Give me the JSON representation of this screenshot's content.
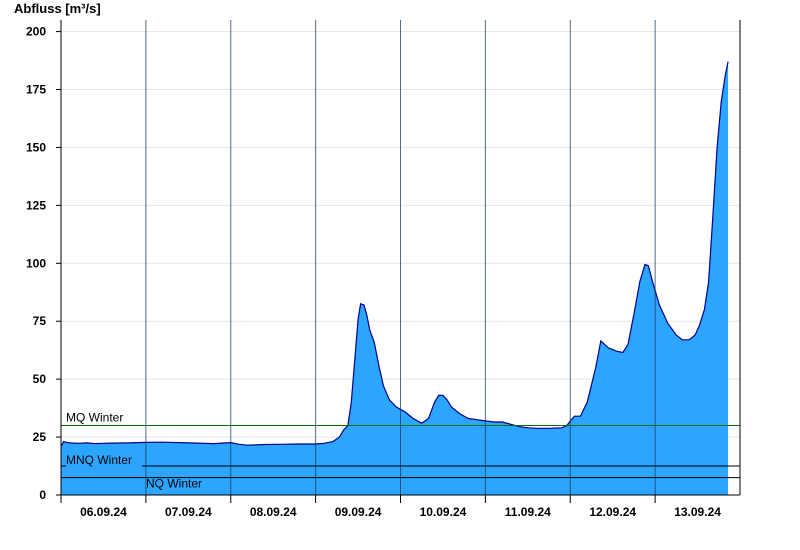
{
  "chart_data": {
    "type": "area",
    "title": "",
    "ylabel": "Abfluss [m³/s]",
    "xlabel": "",
    "ylim": [
      0,
      205
    ],
    "yticks": [
      0,
      25,
      50,
      75,
      100,
      125,
      150,
      175,
      200
    ],
    "grid": true,
    "x_unit": "days",
    "x_range": [
      0,
      8
    ],
    "x_tick_positions": [
      0.5,
      1.5,
      2.5,
      3.5,
      4.5,
      5.5,
      6.5,
      7.5
    ],
    "x_tick_labels": [
      "06.09.24",
      "07.09.24",
      "08.09.24",
      "09.09.24",
      "10.09.24",
      "11.09.24",
      "12.09.24",
      "13.09.24"
    ],
    "x_day_boundaries": [
      1,
      2,
      3,
      4,
      5,
      6,
      7
    ],
    "series": [
      {
        "fill": "#2ca5ff",
        "stroke": "#00008b",
        "points": [
          [
            0.0,
            21
          ],
          [
            0.03,
            23
          ],
          [
            0.1,
            22.5
          ],
          [
            0.2,
            22.3
          ],
          [
            0.3,
            22.5
          ],
          [
            0.4,
            22.2
          ],
          [
            0.5,
            22.3
          ],
          [
            0.6,
            22.4
          ],
          [
            0.8,
            22.5
          ],
          [
            1.0,
            22.7
          ],
          [
            1.2,
            22.8
          ],
          [
            1.4,
            22.6
          ],
          [
            1.6,
            22.4
          ],
          [
            1.8,
            22.2
          ],
          [
            2.0,
            22.6
          ],
          [
            2.1,
            21.9
          ],
          [
            2.2,
            21.5
          ],
          [
            2.4,
            21.8
          ],
          [
            2.6,
            21.9
          ],
          [
            2.8,
            22.0
          ],
          [
            3.0,
            22.0
          ],
          [
            3.1,
            22.3
          ],
          [
            3.2,
            23.0
          ],
          [
            3.28,
            25
          ],
          [
            3.33,
            28
          ],
          [
            3.38,
            30
          ],
          [
            3.42,
            40
          ],
          [
            3.46,
            58
          ],
          [
            3.5,
            76
          ],
          [
            3.53,
            82.5
          ],
          [
            3.57,
            82
          ],
          [
            3.6,
            78
          ],
          [
            3.64,
            71
          ],
          [
            3.69,
            66
          ],
          [
            3.75,
            55
          ],
          [
            3.8,
            47
          ],
          [
            3.87,
            41
          ],
          [
            3.95,
            38
          ],
          [
            4.05,
            36
          ],
          [
            4.15,
            33
          ],
          [
            4.25,
            31
          ],
          [
            4.33,
            33
          ],
          [
            4.4,
            40
          ],
          [
            4.45,
            43
          ],
          [
            4.5,
            43
          ],
          [
            4.55,
            41
          ],
          [
            4.6,
            38
          ],
          [
            4.7,
            35
          ],
          [
            4.8,
            33
          ],
          [
            4.9,
            32.5
          ],
          [
            5.0,
            32
          ],
          [
            5.1,
            31.5
          ],
          [
            5.2,
            31.5
          ],
          [
            5.3,
            30.5
          ],
          [
            5.4,
            29.5
          ],
          [
            5.5,
            29
          ],
          [
            5.6,
            28.8
          ],
          [
            5.75,
            28.8
          ],
          [
            5.9,
            29
          ],
          [
            5.96,
            30
          ],
          [
            6.0,
            32
          ],
          [
            6.05,
            34
          ],
          [
            6.12,
            34
          ],
          [
            6.2,
            40
          ],
          [
            6.3,
            55
          ],
          [
            6.36,
            66.5
          ],
          [
            6.45,
            63.5
          ],
          [
            6.55,
            62
          ],
          [
            6.62,
            61.5
          ],
          [
            6.68,
            65
          ],
          [
            6.75,
            78
          ],
          [
            6.82,
            92
          ],
          [
            6.88,
            99.5
          ],
          [
            6.92,
            99
          ],
          [
            6.97,
            92
          ],
          [
            7.05,
            82
          ],
          [
            7.15,
            74
          ],
          [
            7.25,
            69
          ],
          [
            7.32,
            67
          ],
          [
            7.4,
            67
          ],
          [
            7.47,
            69
          ],
          [
            7.52,
            73
          ],
          [
            7.58,
            80
          ],
          [
            7.63,
            92
          ],
          [
            7.68,
            120
          ],
          [
            7.73,
            150
          ],
          [
            7.78,
            170
          ],
          [
            7.83,
            182
          ],
          [
            7.86,
            187
          ]
        ]
      }
    ],
    "reference_lines": [
      {
        "label": "MQ Winter",
        "value": 30,
        "color": "#007000"
      },
      {
        "label": "MNQ Winter",
        "value": 12.5,
        "color": "#000000"
      },
      {
        "label": "NQ Winter",
        "value": 7.5,
        "color": "#000000"
      }
    ]
  }
}
